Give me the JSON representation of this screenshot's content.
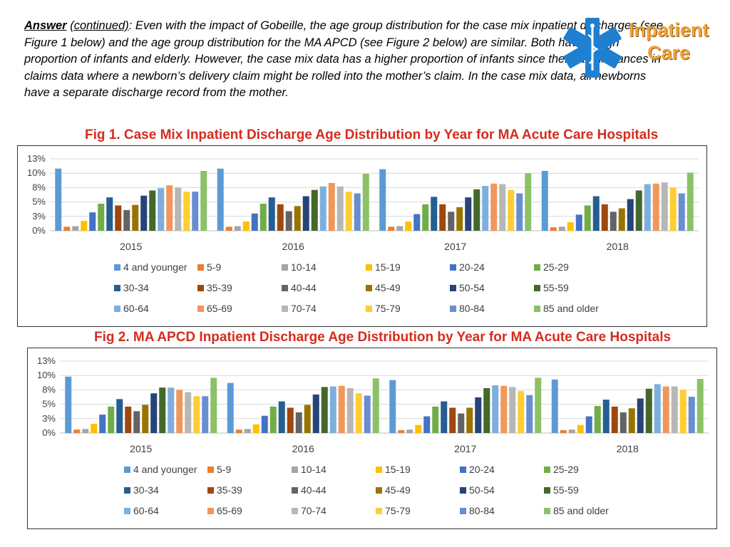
{
  "intro": {
    "answer_label": "Answer",
    "continued_label": "(continued)",
    "text": ": Even with the impact of Gobeille, the age group distribution for the case mix inpatient discharges (see Figure 1 below) and the age group distribution for the MA APCD (see Figure 2 below) are similar. Both have a high proportion of infants and elderly. However, the case mix data has a higher proportion of infants since there are instances in claims data where a newborn’s delivery claim might be rolled into the mother’s claim. In the case mix data, all newborns have a separate discharge record from the mother."
  },
  "logo": {
    "line1": "Inpatient",
    "line2": "Care",
    "icon": "star-of-life-icon",
    "color": "#1f7fd1"
  },
  "figures": {
    "fig1_title": "Fig 1. Case Mix Inpatient Discharge Age Distribution by Year for MA Acute Care Hospitals",
    "fig2_title": "Fig 2. MA APCD Inpatient Discharge Age Distribution by Year for MA Acute Care Hospitals"
  },
  "chart_data": [
    {
      "type": "bar",
      "title": "Fig 1. Case Mix Inpatient Discharge Age Distribution by Year for MA Acute Care Hospitals",
      "categories": [
        "2015",
        "2016",
        "2017",
        "2018"
      ],
      "yticks": [
        "0%",
        "3%",
        "5%",
        "8%",
        "10%",
        "13%"
      ],
      "ylim": [
        0,
        12.5
      ],
      "grid": true,
      "legend_position": "bottom",
      "series": [
        {
          "name": "4 and younger",
          "color": "#5b9bd5",
          "values": [
            10.8,
            10.8,
            10.7,
            10.4
          ]
        },
        {
          "name": "5-9",
          "color": "#ed7d31",
          "values": [
            0.7,
            0.7,
            0.7,
            0.6
          ]
        },
        {
          "name": "10-14",
          "color": "#a5a5a5",
          "values": [
            0.8,
            0.8,
            0.8,
            0.7
          ]
        },
        {
          "name": "15-19",
          "color": "#ffc000",
          "values": [
            1.7,
            1.6,
            1.6,
            1.5
          ]
        },
        {
          "name": "20-24",
          "color": "#4472c4",
          "values": [
            3.2,
            3.0,
            2.9,
            2.8
          ]
        },
        {
          "name": "25-29",
          "color": "#70ad47",
          "values": [
            4.7,
            4.7,
            4.6,
            4.4
          ]
        },
        {
          "name": "30-34",
          "color": "#255e91",
          "values": [
            5.8,
            5.8,
            5.9,
            6.0
          ]
        },
        {
          "name": "35-39",
          "color": "#9e480e",
          "values": [
            4.4,
            4.6,
            4.6,
            4.6
          ]
        },
        {
          "name": "40-44",
          "color": "#636363",
          "values": [
            3.6,
            3.4,
            3.3,
            3.3
          ]
        },
        {
          "name": "45-49",
          "color": "#997300",
          "values": [
            4.5,
            4.3,
            4.1,
            3.9
          ]
        },
        {
          "name": "50-54",
          "color": "#264478",
          "values": [
            6.1,
            6.0,
            5.8,
            5.5
          ]
        },
        {
          "name": "55-59",
          "color": "#43682b",
          "values": [
            7.0,
            7.1,
            7.2,
            7.0
          ]
        },
        {
          "name": "60-64",
          "color": "#7cafdd",
          "values": [
            7.4,
            7.7,
            7.8,
            8.1
          ]
        },
        {
          "name": "65-69",
          "color": "#f1975a",
          "values": [
            7.9,
            8.3,
            8.2,
            8.2
          ]
        },
        {
          "name": "70-74",
          "color": "#b7b7b7",
          "values": [
            7.5,
            7.7,
            8.1,
            8.4
          ]
        },
        {
          "name": "75-79",
          "color": "#ffcd33",
          "values": [
            6.8,
            6.8,
            7.1,
            7.5
          ]
        },
        {
          "name": "80-84",
          "color": "#698ed0",
          "values": [
            6.8,
            6.5,
            6.5,
            6.5
          ]
        },
        {
          "name": "85 and older",
          "color": "#8cc168",
          "values": [
            10.4,
            9.9,
            10.0,
            10.1
          ]
        }
      ]
    },
    {
      "type": "bar",
      "title": "Fig 2. MA APCD Inpatient Discharge Age Distribution by Year for MA Acute Care Hospitals",
      "categories": [
        "2015",
        "2016",
        "2017",
        "2018"
      ],
      "yticks": [
        "0%",
        "3%",
        "5%",
        "8%",
        "10%",
        "13%"
      ],
      "ylim": [
        0,
        12.5
      ],
      "grid": true,
      "legend_position": "bottom",
      "series": [
        {
          "name": "4 and younger",
          "color": "#5b9bd5",
          "values": [
            9.8,
            8.7,
            9.2,
            9.3
          ]
        },
        {
          "name": "5-9",
          "color": "#ed7d31",
          "values": [
            0.6,
            0.6,
            0.5,
            0.5
          ]
        },
        {
          "name": "10-14",
          "color": "#a5a5a5",
          "values": [
            0.7,
            0.7,
            0.6,
            0.6
          ]
        },
        {
          "name": "15-19",
          "color": "#ffc000",
          "values": [
            1.6,
            1.5,
            1.4,
            1.4
          ]
        },
        {
          "name": "20-24",
          "color": "#4472c4",
          "values": [
            3.2,
            3.0,
            2.9,
            2.9
          ]
        },
        {
          "name": "25-29",
          "color": "#70ad47",
          "values": [
            4.6,
            4.6,
            4.6,
            4.7
          ]
        },
        {
          "name": "30-34",
          "color": "#255e91",
          "values": [
            5.9,
            5.5,
            5.5,
            5.8
          ]
        },
        {
          "name": "35-39",
          "color": "#9e480e",
          "values": [
            4.6,
            4.4,
            4.4,
            4.6
          ]
        },
        {
          "name": "40-44",
          "color": "#636363",
          "values": [
            3.8,
            3.6,
            3.4,
            3.6
          ]
        },
        {
          "name": "45-49",
          "color": "#997300",
          "values": [
            4.9,
            4.9,
            4.4,
            4.3
          ]
        },
        {
          "name": "50-54",
          "color": "#264478",
          "values": [
            6.9,
            6.7,
            6.2,
            6.0
          ]
        },
        {
          "name": "55-59",
          "color": "#43682b",
          "values": [
            7.9,
            8.0,
            7.8,
            7.7
          ]
        },
        {
          "name": "60-64",
          "color": "#7cafdd",
          "values": [
            7.9,
            8.1,
            8.3,
            8.5
          ]
        },
        {
          "name": "65-69",
          "color": "#f1975a",
          "values": [
            7.5,
            8.2,
            8.2,
            8.1
          ]
        },
        {
          "name": "70-74",
          "color": "#b7b7b7",
          "values": [
            7.1,
            7.8,
            8.0,
            8.1
          ]
        },
        {
          "name": "75-79",
          "color": "#ffcd33",
          "values": [
            6.4,
            6.9,
            7.3,
            7.5
          ]
        },
        {
          "name": "80-84",
          "color": "#698ed0",
          "values": [
            6.4,
            6.5,
            6.6,
            6.3
          ]
        },
        {
          "name": "85 and older",
          "color": "#8cc168",
          "values": [
            9.6,
            9.5,
            9.6,
            9.4
          ]
        }
      ]
    }
  ]
}
